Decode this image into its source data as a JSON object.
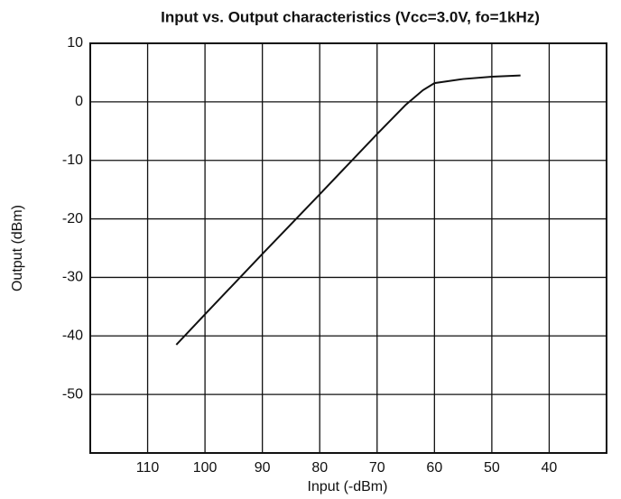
{
  "chart_data": {
    "type": "line",
    "title": "Input vs. Output characteristics (Vcc=3.0V, fo=1kHz)",
    "x_label": "Input (-dBm)",
    "y_label": "Output (dBm)",
    "x": [
      105,
      100,
      90,
      80,
      70,
      65,
      62,
      60,
      55,
      50,
      45
    ],
    "series": [
      {
        "color": "#111111",
        "values": [
          -41.5,
          -36.3,
          -26,
          -15.8,
          -5.5,
          -0.5,
          2,
          3.2,
          3.9,
          4.3,
          4.5
        ]
      }
    ],
    "xlim": [
      120,
      30
    ],
    "xticks": [
      110,
      100,
      90,
      80,
      70,
      60,
      50,
      40
    ],
    "ylim": [
      -60,
      10
    ],
    "yticks": [
      10,
      0,
      -10,
      -20,
      -30,
      -40,
      -50
    ],
    "grid": true
  }
}
